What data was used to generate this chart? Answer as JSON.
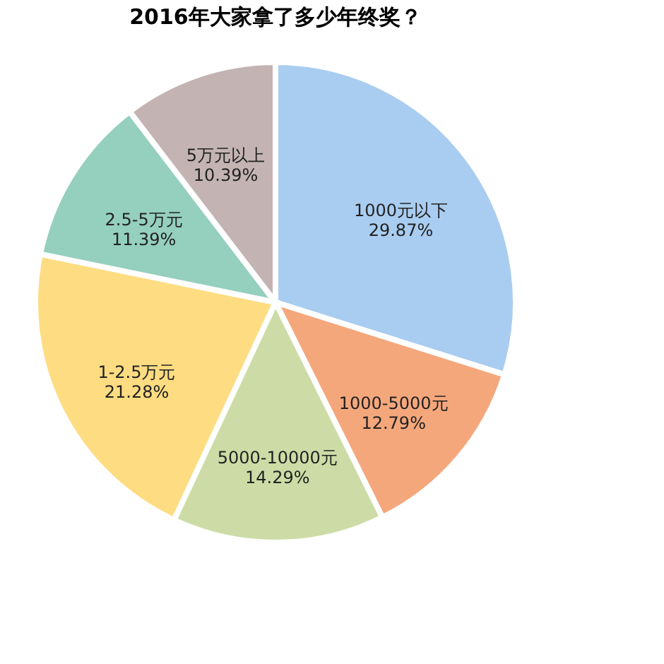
{
  "chart_data": {
    "type": "pie",
    "title": "2016年大家拿了多少年终奖？",
    "categories": [
      "1000元以下",
      "1000-5000元",
      "5000-10000元",
      "1-2.5万元",
      "2.5-5万元",
      "5万元以上"
    ],
    "values": [
      29.87,
      12.79,
      14.29,
      21.28,
      11.39,
      10.39
    ],
    "colors": [
      "#a9cdf0",
      "#f5a77c",
      "#cddca6",
      "#fedc82",
      "#95cfbd",
      "#c4b3b3"
    ],
    "value_labels": [
      "29.87%",
      "12.79%",
      "14.29%",
      "21.28%",
      "11.39%",
      "10.39%"
    ],
    "legend": false
  }
}
